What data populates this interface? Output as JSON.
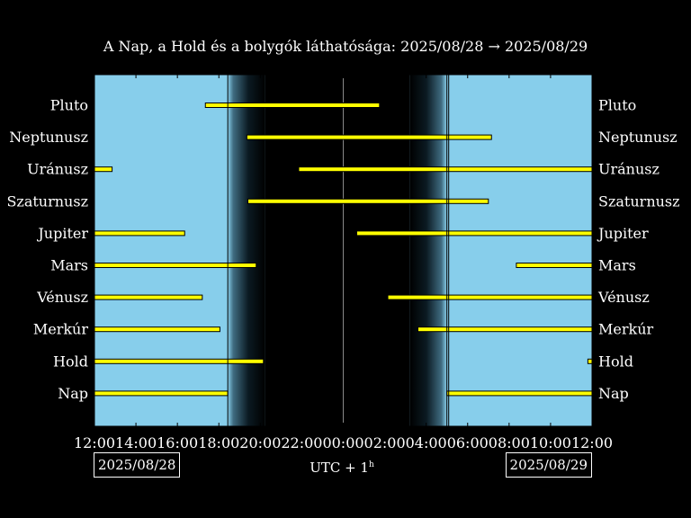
{
  "title": "A Nap, a Hold és a bolygók láthatósága: 2025/08/28 → 2025/08/29",
  "chart_data": {
    "type": "timeline",
    "title": "A Nap, a Hold és a bolygók láthatósága: 2025/08/28 → 2025/08/29",
    "x_range_hours": [
      12,
      36
    ],
    "x_tick_labels": [
      "12:00",
      "14:00",
      "16:00",
      "18:00",
      "20:00",
      "22:00",
      "00:00",
      "02:00",
      "04:00",
      "06:00",
      "08:00",
      "10:00",
      "12:00"
    ],
    "x_ticks_hours": [
      12,
      14,
      16,
      18,
      20,
      22,
      24,
      26,
      28,
      30,
      32,
      34,
      36
    ],
    "xlabel": "UTC + 1",
    "xlabel_superscript": "h",
    "start_date": "2025/08/28",
    "end_date": "2025/08/29",
    "sunset": 18.43,
    "sunrise": 29.0,
    "midnight": 24,
    "twilight_fade_hours": 1.8,
    "colors": {
      "day": "#87ceeb",
      "night": "#000000",
      "bar": "#ffff00",
      "bar_edge": "#000000",
      "midnight_line": "#888888",
      "sun_line": "#000000"
    },
    "rows": [
      {
        "label": "Pluto",
        "intervals": [
          [
            17.35,
            25.75
          ]
        ]
      },
      {
        "label": "Neptunusz",
        "intervals": [
          [
            19.35,
            31.15
          ]
        ]
      },
      {
        "label": "Uránusz",
        "intervals": [
          [
            12.0,
            12.85
          ],
          [
            21.85,
            36.0
          ]
        ]
      },
      {
        "label": "Szaturnusz",
        "intervals": [
          [
            19.4,
            31.0
          ]
        ]
      },
      {
        "label": "Jupiter",
        "intervals": [
          [
            12.0,
            16.35
          ],
          [
            24.65,
            36.0
          ]
        ]
      },
      {
        "label": "Mars",
        "intervals": [
          [
            12.0,
            19.8
          ],
          [
            32.35,
            36.0
          ]
        ]
      },
      {
        "label": "Vénusz",
        "intervals": [
          [
            12.0,
            17.2
          ],
          [
            26.15,
            36.0
          ]
        ]
      },
      {
        "label": "Merkúr",
        "intervals": [
          [
            12.0,
            18.05
          ],
          [
            27.6,
            36.0
          ]
        ]
      },
      {
        "label": "Hold",
        "intervals": [
          [
            12.0,
            20.15
          ],
          [
            35.8,
            36.0
          ]
        ]
      },
      {
        "label": "Nap",
        "intervals": [
          [
            12.0,
            18.43
          ],
          [
            29.0,
            36.0
          ]
        ]
      }
    ]
  }
}
